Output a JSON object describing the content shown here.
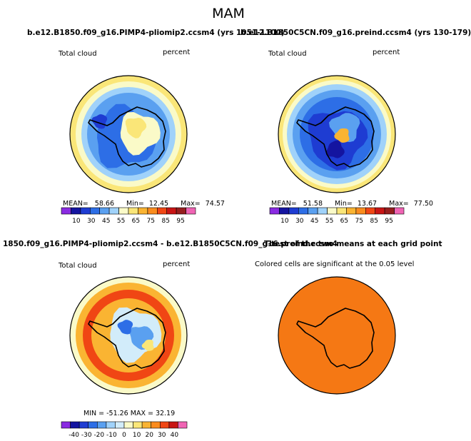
{
  "main_title": "MAM",
  "colors": {
    "scale_top": [
      "#8a2be2",
      "#1414a0",
      "#1e3cd2",
      "#2d6ee6",
      "#5aa0f0",
      "#a0d2fa",
      "#fafac8",
      "#fae678",
      "#fab432",
      "#fa8c1e",
      "#f04614",
      "#c81414",
      "#961e1e",
      "#f064b4"
    ],
    "scale_diff": [
      "#8a2be2",
      "#1414a0",
      "#1e3cd2",
      "#2d6ee6",
      "#5aa0f0",
      "#a0d2fa",
      "#d2ecfa",
      "#fafac8",
      "#fae678",
      "#fab432",
      "#fa8c1e",
      "#f04614",
      "#c81414",
      "#f064b4"
    ],
    "significant": "#f57814",
    "land": "#000000"
  },
  "chart_data": [
    {
      "type": "heatmap",
      "title": "b.e12.B1850.f09_g16.PIMP4-pliomip2.ccsm4 (yrs 1051-1100)",
      "variable": "Total cloud",
      "units": "percent",
      "stats": {
        "mean_label": "MEAN=",
        "mean": "58.66",
        "min_label": "Min=",
        "min": "12.45",
        "max_label": "Max=",
        "max": "74.57"
      },
      "colorbar_labels": [
        "10",
        "30",
        "45",
        "55",
        "65",
        "75",
        "85",
        "95"
      ]
    },
    {
      "type": "heatmap",
      "title": "b.e12.B1850C5CN.f09_g16.preind.ccsm4 (yrs 130-179)",
      "variable": "Total cloud",
      "units": "percent",
      "stats": {
        "mean_label": "MEAN=",
        "mean": "51.58",
        "min_label": "Min=",
        "min": "13.67",
        "max_label": "Max=",
        "max": "77.50"
      },
      "colorbar_labels": [
        "10",
        "30",
        "45",
        "55",
        "65",
        "75",
        "85",
        "95"
      ]
    },
    {
      "type": "heatmap",
      "title": "1850.f09_g16.PIMP4-pliomip2.ccsm4 - b.e12.B1850C5CN.f09_g16.preind.ccsm4",
      "variable": "Total cloud",
      "units": "percent",
      "stats_text": "MIN = -51.26  MAX =  32.19",
      "colorbar_labels": [
        "-40",
        "-30",
        "-20",
        "-10",
        "0",
        "10",
        "20",
        "30",
        "40"
      ]
    },
    {
      "type": "heatmap",
      "title": "T-test of the two means at each grid point",
      "annotation": "Colored cells are significant at the 0.05 level"
    }
  ]
}
